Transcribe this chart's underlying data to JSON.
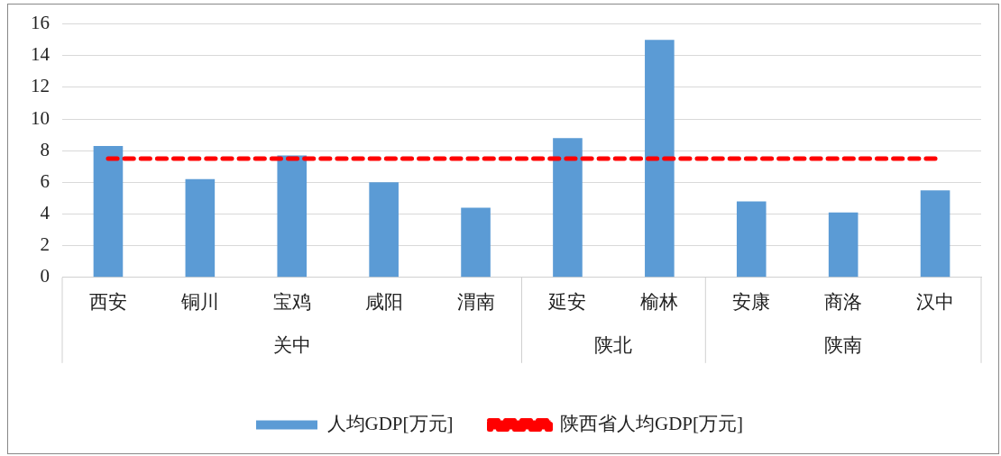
{
  "chart_data": {
    "type": "bar",
    "categories": [
      "西安",
      "铜川",
      "宝鸡",
      "咸阳",
      "渭南",
      "延安",
      "榆林",
      "安康",
      "商洛",
      "汉中"
    ],
    "series": [
      {
        "name": "人均GDP[万元]",
        "color": "#5b9bd5",
        "values": [
          8.3,
          6.2,
          7.7,
          6.0,
          4.4,
          8.8,
          15.0,
          4.8,
          4.1,
          5.5
        ]
      },
      {
        "name": "陕西省人均GDP[万元]",
        "type": "line",
        "color": "#ff0000",
        "line_style": "dashed",
        "marker": "none",
        "values": [
          7.5,
          7.5,
          7.5,
          7.5,
          7.5,
          7.5,
          7.5,
          7.5,
          7.5,
          7.5
        ]
      }
    ],
    "annotations": [
      "关中",
      "陕北",
      "陕南"
    ],
    "ylim": [
      0,
      16
    ],
    "yticks": [
      0,
      2,
      4,
      6,
      8,
      10,
      12,
      14,
      16
    ],
    "grid": "y",
    "legend": "bottom"
  }
}
